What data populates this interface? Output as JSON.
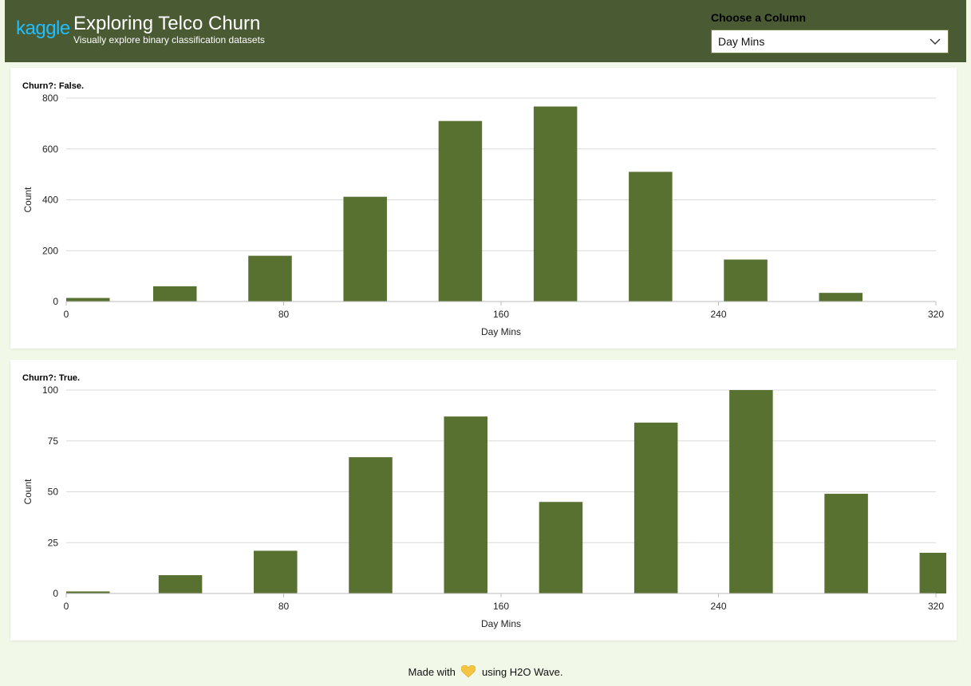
{
  "header": {
    "logo": "kaggle",
    "title": "Exploring Telco Churn",
    "subtitle": "Visually explore binary classification datasets"
  },
  "column_picker": {
    "label": "Choose a Column",
    "selected": "Day Mins"
  },
  "footer": {
    "before": "Made with",
    "after": "using H2O Wave."
  },
  "colors": {
    "bar": "#587030",
    "grid": "#d9d9d9",
    "header": "#4a5a33",
    "heart": "#f5c542"
  },
  "chart_data": [
    {
      "type": "bar",
      "title": "Churn?: False.",
      "xlabel": "Day Mins",
      "ylabel": "Count",
      "xlim": [
        0,
        320
      ],
      "ylim": [
        0,
        800
      ],
      "xticks": [
        0,
        80,
        160,
        240,
        320
      ],
      "yticks": [
        0,
        200,
        400,
        600,
        800
      ],
      "bin_width": 16,
      "bins": [
        0,
        32,
        67,
        102,
        137,
        172,
        207,
        242,
        277
      ],
      "values": [
        14,
        60,
        180,
        412,
        710,
        767,
        510,
        165,
        34
      ],
      "grid": true
    },
    {
      "type": "bar",
      "title": "Churn?: True.",
      "xlabel": "Day Mins",
      "ylabel": "Count",
      "xlim": [
        0,
        320
      ],
      "ylim": [
        0,
        100
      ],
      "xticks": [
        0,
        80,
        160,
        240,
        320
      ],
      "yticks": [
        0,
        25,
        50,
        75,
        100
      ],
      "bin_width": 16,
      "bins": [
        0,
        34,
        69,
        104,
        139,
        174,
        209,
        244,
        279,
        314
      ],
      "values": [
        1,
        9,
        21,
        67,
        87,
        45,
        84,
        100,
        49,
        20
      ],
      "grid": true
    }
  ]
}
